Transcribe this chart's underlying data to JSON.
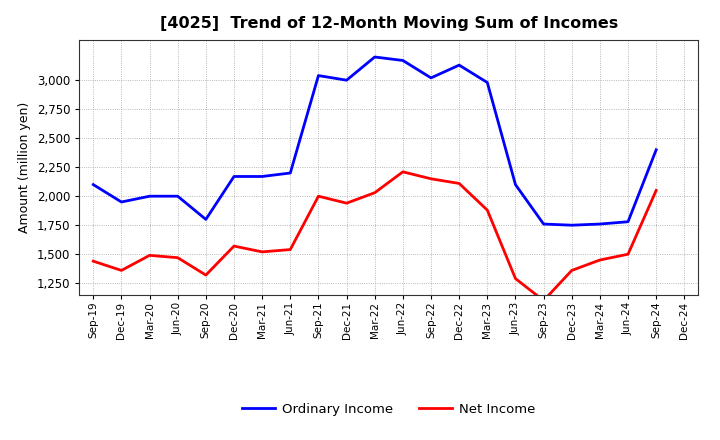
{
  "title": "[4025]  Trend of 12-Month Moving Sum of Incomes",
  "ylabel": "Amount (million yen)",
  "x_labels": [
    "Sep-19",
    "Dec-19",
    "Mar-20",
    "Jun-20",
    "Sep-20",
    "Dec-20",
    "Mar-21",
    "Jun-21",
    "Sep-21",
    "Dec-21",
    "Mar-22",
    "Jun-22",
    "Sep-22",
    "Dec-22",
    "Mar-23",
    "Jun-23",
    "Sep-23",
    "Dec-23",
    "Mar-24",
    "Jun-24",
    "Sep-24",
    "Dec-24"
  ],
  "ordinary_income": [
    2100,
    1950,
    2000,
    2000,
    1800,
    2170,
    2170,
    2200,
    3040,
    3000,
    3200,
    3170,
    3020,
    3130,
    2980,
    2100,
    1760,
    1750,
    1760,
    1780,
    2400,
    null
  ],
  "net_income": [
    1440,
    1360,
    1490,
    1470,
    1320,
    1570,
    1520,
    1540,
    2000,
    1940,
    2030,
    2210,
    2150,
    2110,
    1880,
    1290,
    1100,
    1360,
    1450,
    1500,
    2050,
    null
  ],
  "legend_ordinary": "Ordinary Income",
  "legend_net": "Net Income",
  "ordinary_color": "#0000FF",
  "net_color": "#FF0000",
  "ylim": [
    1150,
    3350
  ],
  "yticks": [
    1250,
    1500,
    1750,
    2000,
    2250,
    2500,
    2750,
    3000
  ],
  "bg_color": "#FFFFFF",
  "plot_bg_color": "#FFFFFF",
  "grid_color": "#AAAAAA"
}
